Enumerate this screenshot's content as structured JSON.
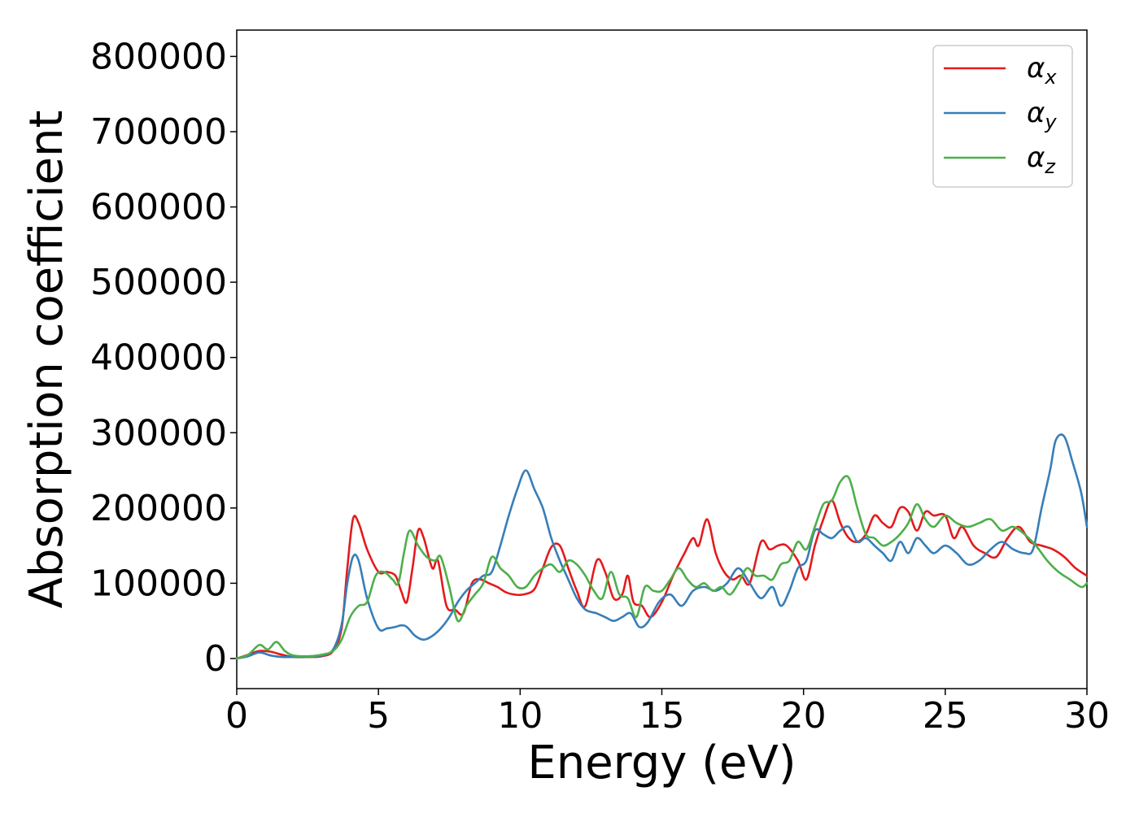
{
  "chart_data": {
    "type": "line",
    "xlabel": "Energy (eV)",
    "ylabel": "Absorption coefficient",
    "xlim": [
      0,
      30
    ],
    "ylim": [
      -40000,
      835000
    ],
    "xticks": [
      "0",
      "5",
      "10",
      "15",
      "20",
      "25",
      "30"
    ],
    "xtick_values": [
      0,
      5,
      10,
      15,
      20,
      25,
      30
    ],
    "yticks": [
      "0",
      "100000",
      "200000",
      "300000",
      "400000",
      "500000",
      "600000",
      "700000",
      "800000"
    ],
    "ytick_values": [
      0,
      100000,
      200000,
      300000,
      400000,
      500000,
      600000,
      700000,
      800000
    ],
    "grid": false,
    "legend_position": "top-right",
    "series": [
      {
        "name": "αx",
        "symbol": "α",
        "subscript": "x",
        "color": "#e41a1c",
        "x": [
          0,
          0.4,
          0.8,
          1.2,
          1.6,
          2.0,
          2.5,
          3.0,
          3.4,
          3.7,
          3.9,
          4.1,
          4.3,
          4.6,
          5.0,
          5.3,
          5.6,
          5.8,
          6.0,
          6.2,
          6.4,
          6.6,
          6.9,
          7.1,
          7.4,
          7.7,
          8.0,
          8.3,
          8.6,
          8.9,
          9.2,
          9.5,
          9.8,
          10.1,
          10.5,
          10.8,
          11.1,
          11.4,
          11.7,
          12.0,
          12.3,
          12.7,
          13.0,
          13.3,
          13.6,
          13.8,
          14.0,
          14.3,
          14.6,
          15.0,
          15.4,
          15.8,
          16.1,
          16.3,
          16.6,
          16.9,
          17.2,
          17.5,
          17.8,
          18.1,
          18.5,
          18.8,
          19.1,
          19.4,
          19.8,
          20.1,
          20.4,
          20.7,
          21.0,
          21.3,
          21.6,
          21.9,
          22.2,
          22.5,
          22.8,
          23.1,
          23.4,
          23.7,
          24.0,
          24.3,
          24.6,
          25.0,
          25.3,
          25.6,
          26.0,
          26.4,
          26.8,
          27.2,
          27.6,
          28.0,
          28.4,
          28.8,
          29.2,
          29.6,
          30.0
        ],
        "y": [
          0,
          5000,
          10000,
          9000,
          5000,
          2000,
          2000,
          3000,
          10000,
          40000,
          120000,
          185000,
          180000,
          145000,
          115000,
          115000,
          110000,
          90000,
          75000,
          120000,
          170000,
          160000,
          120000,
          130000,
          70000,
          65000,
          60000,
          100000,
          105000,
          100000,
          95000,
          88000,
          85000,
          85000,
          92000,
          120000,
          148000,
          150000,
          120000,
          90000,
          70000,
          130000,
          115000,
          80000,
          85000,
          110000,
          75000,
          70000,
          55000,
          75000,
          110000,
          140000,
          160000,
          150000,
          185000,
          140000,
          115000,
          105000,
          110000,
          100000,
          155000,
          145000,
          150000,
          150000,
          130000,
          105000,
          150000,
          185000,
          210000,
          180000,
          160000,
          155000,
          165000,
          190000,
          180000,
          175000,
          200000,
          195000,
          170000,
          195000,
          190000,
          190000,
          160000,
          175000,
          150000,
          140000,
          135000,
          160000,
          175000,
          155000,
          150000,
          145000,
          135000,
          120000,
          110000
        ]
      },
      {
        "name": "αy",
        "symbol": "α",
        "subscript": "y",
        "color": "#377eb8",
        "x": [
          0,
          0.4,
          0.8,
          1.2,
          1.6,
          2.0,
          2.5,
          3.0,
          3.4,
          3.7,
          3.9,
          4.1,
          4.3,
          4.6,
          5.0,
          5.3,
          5.6,
          5.8,
          6.0,
          6.3,
          6.6,
          6.9,
          7.2,
          7.5,
          7.8,
          8.1,
          8.4,
          8.7,
          9.0,
          9.3,
          9.6,
          9.9,
          10.2,
          10.5,
          10.8,
          11.1,
          11.4,
          11.7,
          12.0,
          12.3,
          12.7,
          13.0,
          13.3,
          13.6,
          13.9,
          14.2,
          14.5,
          14.9,
          15.3,
          15.7,
          16.1,
          16.5,
          16.9,
          17.3,
          17.7,
          18.1,
          18.5,
          18.9,
          19.2,
          19.5,
          19.8,
          20.1,
          20.4,
          20.7,
          21.0,
          21.3,
          21.6,
          21.9,
          22.2,
          22.5,
          22.8,
          23.1,
          23.4,
          23.7,
          24.0,
          24.3,
          24.6,
          25.0,
          25.4,
          25.8,
          26.2,
          26.6,
          27.0,
          27.4,
          27.8,
          28.1,
          28.4,
          28.7,
          28.9,
          29.2,
          29.5,
          29.8,
          30.0
        ],
        "y": [
          0,
          3000,
          8000,
          4000,
          2000,
          2000,
          2000,
          4000,
          12000,
          45000,
          100000,
          135000,
          130000,
          80000,
          40000,
          40000,
          42000,
          44000,
          42000,
          30000,
          25000,
          30000,
          40000,
          55000,
          75000,
          90000,
          100000,
          110000,
          115000,
          150000,
          190000,
          225000,
          250000,
          225000,
          200000,
          160000,
          130000,
          105000,
          80000,
          65000,
          60000,
          55000,
          50000,
          55000,
          60000,
          42000,
          48000,
          75000,
          85000,
          70000,
          90000,
          95000,
          90000,
          100000,
          120000,
          100000,
          80000,
          95000,
          70000,
          90000,
          120000,
          130000,
          170000,
          165000,
          160000,
          170000,
          175000,
          155000,
          160000,
          150000,
          140000,
          130000,
          155000,
          140000,
          160000,
          150000,
          140000,
          150000,
          140000,
          125000,
          130000,
          145000,
          155000,
          145000,
          140000,
          145000,
          200000,
          250000,
          290000,
          295000,
          260000,
          220000,
          175000
        ]
      },
      {
        "name": "αz",
        "symbol": "α",
        "subscript": "z",
        "color": "#4daf4a",
        "x": [
          0,
          0.4,
          0.8,
          1.1,
          1.4,
          1.7,
          2.0,
          2.5,
          3.0,
          3.4,
          3.7,
          4.0,
          4.3,
          4.6,
          4.9,
          5.2,
          5.5,
          5.7,
          5.9,
          6.1,
          6.4,
          6.7,
          7.0,
          7.2,
          7.5,
          7.8,
          8.1,
          8.4,
          8.7,
          9.0,
          9.3,
          9.6,
          9.9,
          10.2,
          10.5,
          10.8,
          11.1,
          11.4,
          11.7,
          12.0,
          12.3,
          12.6,
          12.9,
          13.2,
          13.5,
          13.8,
          14.1,
          14.4,
          14.7,
          15.0,
          15.3,
          15.6,
          15.9,
          16.2,
          16.5,
          16.8,
          17.1,
          17.4,
          17.7,
          18.0,
          18.3,
          18.6,
          18.9,
          19.2,
          19.5,
          19.8,
          20.1,
          20.4,
          20.7,
          21.0,
          21.3,
          21.6,
          21.9,
          22.2,
          22.5,
          22.8,
          23.1,
          23.4,
          23.7,
          24.0,
          24.3,
          24.6,
          25.0,
          25.4,
          25.8,
          26.2,
          26.6,
          27.0,
          27.4,
          27.8,
          28.2,
          28.6,
          29.0,
          29.4,
          29.8,
          30.0
        ],
        "y": [
          0,
          5000,
          18000,
          12000,
          22000,
          10000,
          4000,
          3000,
          5000,
          10000,
          25000,
          55000,
          70000,
          75000,
          110000,
          115000,
          105000,
          100000,
          140000,
          170000,
          150000,
          135000,
          130000,
          135000,
          95000,
          50000,
          70000,
          85000,
          100000,
          135000,
          120000,
          110000,
          95000,
          95000,
          110000,
          120000,
          125000,
          115000,
          130000,
          125000,
          110000,
          90000,
          80000,
          115000,
          85000,
          80000,
          55000,
          95000,
          90000,
          90000,
          105000,
          120000,
          105000,
          95000,
          100000,
          90000,
          95000,
          85000,
          100000,
          120000,
          110000,
          110000,
          105000,
          125000,
          130000,
          155000,
          145000,
          175000,
          205000,
          210000,
          235000,
          240000,
          200000,
          165000,
          160000,
          150000,
          155000,
          165000,
          180000,
          205000,
          185000,
          175000,
          190000,
          180000,
          175000,
          180000,
          185000,
          170000,
          175000,
          165000,
          150000,
          130000,
          115000,
          105000,
          95000,
          100000
        ]
      }
    ]
  }
}
